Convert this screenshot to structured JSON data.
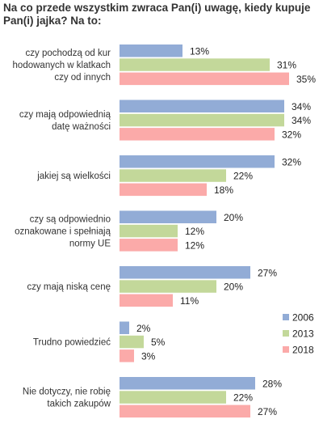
{
  "chart_data": {
    "type": "bar",
    "orientation": "horizontal",
    "title": "Na co przede wszystkim zwraca Pan(i) uwagę, kiedy kupuje Pan(i) jajka? Na to:",
    "categories": [
      "czy pochodzą od kur hodowanych w klatkach czy od innych",
      "czy mają odpowiednią datę ważności",
      "jakiej są wielkości",
      "czy są odpowiednio oznakowane i spełniają normy UE",
      "czy mają niską cenę",
      "Trudno powiedzieć",
      "Nie dotyczy, nie robię takich zakupów"
    ],
    "category_lines": [
      [
        "czy pochodzą od kur",
        "hodowanych w klatkach",
        "czy od innych"
      ],
      [
        "czy mają odpowiednią",
        "datę ważności"
      ],
      [
        "jakiej są wielkości"
      ],
      [
        "czy są odpowiednio",
        "oznakowane i spełniają",
        "normy UE"
      ],
      [
        "czy mają niską cenę"
      ],
      [
        "Trudno powiedzieć"
      ],
      [
        "Nie dotyczy, nie robię",
        "takich zakupów"
      ]
    ],
    "series": [
      {
        "name": "2006",
        "color": "#92acd6",
        "values": [
          13,
          34,
          32,
          20,
          27,
          2,
          28
        ]
      },
      {
        "name": "2013",
        "color": "#c3d89a",
        "values": [
          31,
          34,
          22,
          12,
          20,
          5,
          22
        ]
      },
      {
        "name": "2018",
        "color": "#fbaaa9",
        "values": [
          35,
          32,
          18,
          12,
          11,
          3,
          27
        ]
      }
    ],
    "value_suffix": "%",
    "xlim": [
      0,
      35
    ],
    "grid": false,
    "legend_position": "right"
  }
}
